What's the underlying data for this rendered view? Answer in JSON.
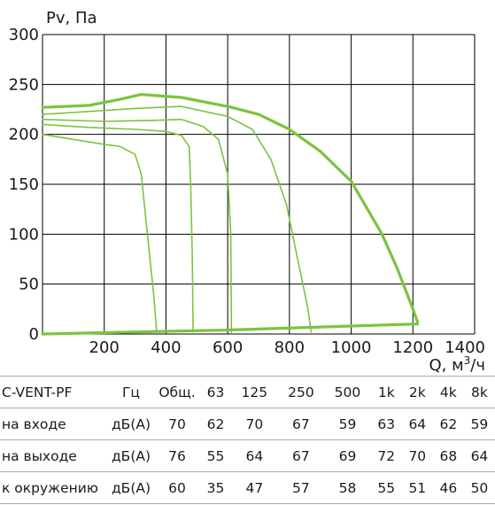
{
  "chart_data": {
    "type": "line",
    "ylabel": "Pv, Па",
    "xlabel_main": "Q, м",
    "xlabel_sup": "3",
    "xlabel_tail": "/ч",
    "xlim": [
      0,
      1400
    ],
    "ylim": [
      0,
      300
    ],
    "x_ticks": [
      200,
      400,
      600,
      800,
      1000,
      1200,
      1400
    ],
    "y_ticks": [
      0,
      50,
      100,
      150,
      200,
      250,
      300
    ],
    "grid": true,
    "line_color": "#7cc33f",
    "grid_color": "#000000",
    "series": [
      {
        "values": [
          [
            0,
            227
          ],
          [
            150,
            229
          ],
          [
            250,
            235
          ],
          [
            320,
            240
          ],
          [
            450,
            237
          ],
          [
            600,
            228
          ],
          [
            700,
            220
          ],
          [
            800,
            205
          ],
          [
            900,
            183
          ],
          [
            1000,
            153
          ],
          [
            1100,
            100
          ],
          [
            1150,
            65
          ],
          [
            1200,
            25
          ],
          [
            1215,
            12
          ]
        ]
      },
      {
        "values": [
          [
            0,
            220
          ],
          [
            150,
            223
          ],
          [
            300,
            226
          ],
          [
            450,
            228
          ],
          [
            600,
            218
          ],
          [
            680,
            205
          ],
          [
            740,
            175
          ],
          [
            790,
            130
          ],
          [
            830,
            70
          ],
          [
            860,
            25
          ],
          [
            870,
            2
          ]
        ]
      },
      {
        "values": [
          [
            0,
            215
          ],
          [
            200,
            213
          ],
          [
            350,
            214
          ],
          [
            450,
            215
          ],
          [
            520,
            208
          ],
          [
            570,
            195
          ],
          [
            600,
            160
          ],
          [
            610,
            100
          ],
          [
            612,
            20
          ],
          [
            612,
            2
          ]
        ]
      },
      {
        "values": [
          [
            0,
            210
          ],
          [
            150,
            207
          ],
          [
            300,
            205
          ],
          [
            400,
            203
          ],
          [
            450,
            199
          ],
          [
            475,
            188
          ],
          [
            480,
            150
          ],
          [
            485,
            80
          ],
          [
            488,
            2
          ]
        ]
      },
      {
        "values": [
          [
            0,
            200
          ],
          [
            100,
            195
          ],
          [
            200,
            190
          ],
          [
            250,
            188
          ],
          [
            300,
            180
          ],
          [
            320,
            160
          ],
          [
            340,
            100
          ],
          [
            360,
            40
          ],
          [
            370,
            2
          ]
        ]
      },
      {
        "values": [
          [
            0,
            0
          ],
          [
            300,
            2
          ],
          [
            600,
            4
          ],
          [
            900,
            7
          ],
          [
            1215,
            10
          ]
        ]
      }
    ]
  },
  "noise_table": {
    "header": [
      "C-VENT-PF",
      "Гц",
      "Общ.",
      "63",
      "125",
      "250",
      "500",
      "1k",
      "2k",
      "4k",
      "8k"
    ],
    "rows": [
      {
        "name": "на входе",
        "unit": "дБ(А)",
        "total": "70",
        "values": [
          "62",
          "70",
          "67",
          "59",
          "63",
          "64",
          "62",
          "59"
        ]
      },
      {
        "name": "на выходе",
        "unit": "дБ(А)",
        "total": "76",
        "values": [
          "55",
          "64",
          "67",
          "69",
          "72",
          "70",
          "68",
          "64"
        ]
      },
      {
        "name": "к окружению",
        "unit": "дБ(А)",
        "total": "60",
        "values": [
          "35",
          "47",
          "57",
          "58",
          "55",
          "51",
          "46",
          "50"
        ]
      }
    ]
  }
}
